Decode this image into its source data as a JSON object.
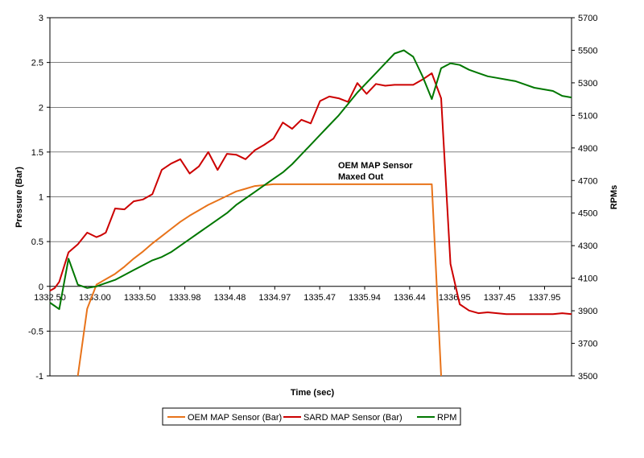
{
  "chart_data": {
    "type": "line",
    "xlabel": "Time (sec)",
    "ylabel_left": "Pressure (Bar)",
    "ylabel_right": "RPMs",
    "x_tick_labels": [
      "1332.50",
      "1333.00",
      "1333.50",
      "1333.98",
      "1334.48",
      "1334.97",
      "1335.47",
      "1335.94",
      "1336.44",
      "1336.95",
      "1337.45",
      "1337.95"
    ],
    "ylim_left": [
      -1,
      3
    ],
    "yticks_left": [
      "-1",
      "-0.5",
      "0",
      "0.5",
      "1",
      "1.5",
      "2",
      "2.5",
      "3"
    ],
    "ylim_right": [
      3500,
      5700
    ],
    "yticks_right": [
      "3500",
      "3700",
      "3900",
      "4100",
      "4300",
      "4500",
      "4700",
      "4900",
      "5100",
      "5300",
      "5500",
      "5700"
    ],
    "annotation": [
      "OEM MAP Sensor",
      "Maxed Out"
    ],
    "legend_position": "bottom",
    "x": [
      1332.5,
      1332.55,
      1332.6,
      1332.7,
      1332.8,
      1332.9,
      1333.0,
      1333.05,
      1333.1,
      1333.2,
      1333.3,
      1333.4,
      1333.5,
      1333.6,
      1333.7,
      1333.8,
      1333.9,
      1334.0,
      1334.1,
      1334.2,
      1334.3,
      1334.4,
      1334.5,
      1334.6,
      1334.7,
      1334.8,
      1334.9,
      1335.0,
      1335.1,
      1335.2,
      1335.3,
      1335.4,
      1335.5,
      1335.6,
      1335.7,
      1335.8,
      1335.9,
      1336.0,
      1336.1,
      1336.2,
      1336.3,
      1336.4,
      1336.5,
      1336.6,
      1336.7,
      1336.8,
      1336.9,
      1337.0,
      1337.1,
      1337.2,
      1337.3,
      1337.4,
      1337.5,
      1337.6,
      1337.7,
      1337.8,
      1337.9,
      1338.0,
      1338.1
    ],
    "series": [
      {
        "name": "OEM MAP Sensor (Bar)",
        "axis": "left",
        "color": "#e8731a",
        "values": [
          null,
          null,
          null,
          null,
          -1.0,
          -0.25,
          0.02,
          0.05,
          0.08,
          0.14,
          0.22,
          0.31,
          0.39,
          0.48,
          0.56,
          0.64,
          0.72,
          0.79,
          0.85,
          0.91,
          0.96,
          1.01,
          1.06,
          1.09,
          1.12,
          1.13,
          1.14,
          1.14,
          1.14,
          1.14,
          1.14,
          1.14,
          1.14,
          1.14,
          1.14,
          1.14,
          1.14,
          1.14,
          1.14,
          1.14,
          1.14,
          1.14,
          1.14,
          1.14,
          -1.0,
          null,
          null,
          null,
          null,
          null,
          null,
          null,
          null,
          null,
          null,
          null,
          null,
          null,
          null
        ]
      },
      {
        "name": "SARD MAP Sensor (Bar)",
        "axis": "left",
        "color": "#cc0000",
        "values": [
          -0.05,
          -0.02,
          0.05,
          0.38,
          0.47,
          0.6,
          0.55,
          0.57,
          0.6,
          0.87,
          0.86,
          0.95,
          0.97,
          1.03,
          1.3,
          1.37,
          1.42,
          1.26,
          1.34,
          1.5,
          1.3,
          1.48,
          1.47,
          1.42,
          1.52,
          1.58,
          1.65,
          1.83,
          1.76,
          1.86,
          1.82,
          2.07,
          2.12,
          2.1,
          2.06,
          2.27,
          2.15,
          2.26,
          2.24,
          2.25,
          2.25,
          2.25,
          2.31,
          2.38,
          2.1,
          0.25,
          -0.2,
          -0.27,
          -0.3,
          -0.29,
          -0.3,
          -0.31,
          -0.31,
          -0.31,
          -0.31,
          -0.31,
          -0.31,
          -0.3,
          -0.31
        ]
      },
      {
        "name": "RPM",
        "axis": "right",
        "color": "#007700",
        "values": [
          3950,
          3930,
          3910,
          4220,
          4060,
          4040,
          4050,
          4060,
          4070,
          4090,
          4120,
          4150,
          4180,
          4210,
          4230,
          4260,
          4300,
          4340,
          4380,
          4420,
          4460,
          4500,
          4550,
          4590,
          4630,
          4670,
          4710,
          4750,
          4800,
          4860,
          4920,
          4980,
          5040,
          5100,
          5170,
          5240,
          5300,
          5360,
          5420,
          5480,
          5500,
          5460,
          5340,
          5200,
          5390,
          5420,
          5410,
          5380,
          5360,
          5340,
          5330,
          5320,
          5310,
          5290,
          5270,
          5260,
          5250,
          5220,
          5210
        ]
      }
    ]
  }
}
